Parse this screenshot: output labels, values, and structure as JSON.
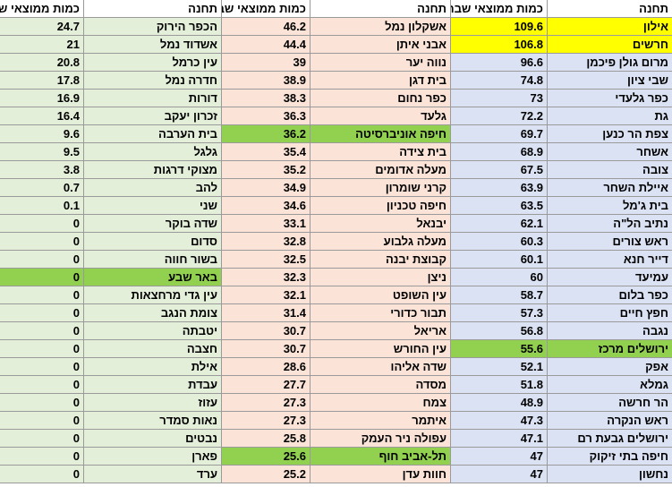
{
  "headers": {
    "quantity": "כמות ממוצאי שבת",
    "station": "תחנה"
  },
  "colors": {
    "group_left": "#e4efda",
    "group_middle": "#fbe4d7",
    "group_right": "#dae2f3",
    "highlight_yellow": "#ffff00",
    "highlight_green": "#92d050"
  },
  "groups": [
    {
      "id": "right",
      "rows": [
        {
          "station": "אילון",
          "value": "109.6",
          "highlight": "yellow"
        },
        {
          "station": "חרשים",
          "value": "106.8",
          "highlight": "yellow"
        },
        {
          "station": "מרום גולן פיכמן",
          "value": "96.6"
        },
        {
          "station": "שבי ציון",
          "value": "74.8"
        },
        {
          "station": "כפר גלעדי",
          "value": "73"
        },
        {
          "station": "גת",
          "value": "72.2"
        },
        {
          "station": "צפת הר כנען",
          "value": "69.7"
        },
        {
          "station": "אשחר",
          "value": "68.9"
        },
        {
          "station": "צובה",
          "value": "67.5"
        },
        {
          "station": "איילת השחר",
          "value": "63.9"
        },
        {
          "station": "בית ג'מל",
          "value": "63.5"
        },
        {
          "station": "נתיב הל\"ה",
          "value": "62.1"
        },
        {
          "station": "ראש צורים",
          "value": "60.3"
        },
        {
          "station": "דייר חנא",
          "value": "60.1"
        },
        {
          "station": "עמיעד",
          "value": "60"
        },
        {
          "station": "כפר בלום",
          "value": "58.7"
        },
        {
          "station": "חפץ חיים",
          "value": "57.3"
        },
        {
          "station": "נגבה",
          "value": "56.8"
        },
        {
          "station": "ירושלים מרכז",
          "value": "55.6",
          "highlight": "green"
        },
        {
          "station": "אפק",
          "value": "52.1"
        },
        {
          "station": "גמלא",
          "value": "51.8"
        },
        {
          "station": "הר חרשה",
          "value": "48.9"
        },
        {
          "station": "ראש הנקרה",
          "value": "47.3"
        },
        {
          "station": "ירושלים גבעת רם",
          "value": "47.1"
        },
        {
          "station": "חיפה בתי זיקוק",
          "value": "47"
        },
        {
          "station": "נחשון",
          "value": "47"
        }
      ]
    },
    {
      "id": "middle",
      "rows": [
        {
          "station": "אשקלון נמל",
          "value": "46.2"
        },
        {
          "station": "אבני איתן",
          "value": "44.4"
        },
        {
          "station": "נווה יער",
          "value": "39"
        },
        {
          "station": "בית דגן",
          "value": "38.9"
        },
        {
          "station": "כפר נחום",
          "value": "38.3"
        },
        {
          "station": "גלעד",
          "value": "36.3"
        },
        {
          "station": "חיפה אוניברסיטה",
          "value": "36.2",
          "highlight": "green"
        },
        {
          "station": "בית צידה",
          "value": "35.4"
        },
        {
          "station": "מעלה אדומים",
          "value": "35.2"
        },
        {
          "station": "קרני שומרון",
          "value": "34.9"
        },
        {
          "station": "חיפה טכניון",
          "value": "34.6"
        },
        {
          "station": "יבנאל",
          "value": "33.1"
        },
        {
          "station": "מעלה גלבוע",
          "value": "32.8"
        },
        {
          "station": "קבוצת יבנה",
          "value": "32.5"
        },
        {
          "station": "ניצן",
          "value": "32.3"
        },
        {
          "station": "עין השופט",
          "value": "32.1"
        },
        {
          "station": "תבור כדורי",
          "value": "31.4"
        },
        {
          "station": "אריאל",
          "value": "30.7"
        },
        {
          "station": "עין החורש",
          "value": "30.7"
        },
        {
          "station": "שדה אליהו",
          "value": "28.6"
        },
        {
          "station": "מסדה",
          "value": "27.7"
        },
        {
          "station": "צמח",
          "value": "27.3"
        },
        {
          "station": "איתמר",
          "value": "27.3"
        },
        {
          "station": "עפולה ניר העמק",
          "value": "25.8"
        },
        {
          "station": "תל-אביב חוף",
          "value": "25.6",
          "highlight": "green"
        },
        {
          "station": "חוות עדן",
          "value": "25.2"
        }
      ]
    },
    {
      "id": "left",
      "rows": [
        {
          "station": "הכפר הירוק",
          "value": "24.7"
        },
        {
          "station": "אשדוד נמל",
          "value": "21"
        },
        {
          "station": "עין כרמל",
          "value": "20.8"
        },
        {
          "station": "חדרה נמל",
          "value": "17.8"
        },
        {
          "station": "דורות",
          "value": "16.9"
        },
        {
          "station": "זכרון יעקב",
          "value": "16.4"
        },
        {
          "station": "בית הערבה",
          "value": "9.6"
        },
        {
          "station": "גלגל",
          "value": "9.5"
        },
        {
          "station": "מצוקי דרגות",
          "value": "3.8"
        },
        {
          "station": "להב",
          "value": "0.7"
        },
        {
          "station": "שני",
          "value": "0.1"
        },
        {
          "station": "שדה בוקר",
          "value": "0"
        },
        {
          "station": "סדום",
          "value": "0"
        },
        {
          "station": "בשור חווה",
          "value": "0"
        },
        {
          "station": "באר שבע",
          "value": "0",
          "highlight": "green"
        },
        {
          "station": "עין גדי מרחצאות",
          "value": "0"
        },
        {
          "station": "צומת הנגב",
          "value": "0"
        },
        {
          "station": "יטבתה",
          "value": "0"
        },
        {
          "station": "חצבה",
          "value": "0"
        },
        {
          "station": "אילת",
          "value": "0"
        },
        {
          "station": "עבדת",
          "value": "0"
        },
        {
          "station": "עזוז",
          "value": "0"
        },
        {
          "station": "נאות סמדר",
          "value": "0"
        },
        {
          "station": "נבטים",
          "value": "0"
        },
        {
          "station": "פארן",
          "value": "0"
        },
        {
          "station": "ערד",
          "value": "0"
        }
      ]
    }
  ]
}
